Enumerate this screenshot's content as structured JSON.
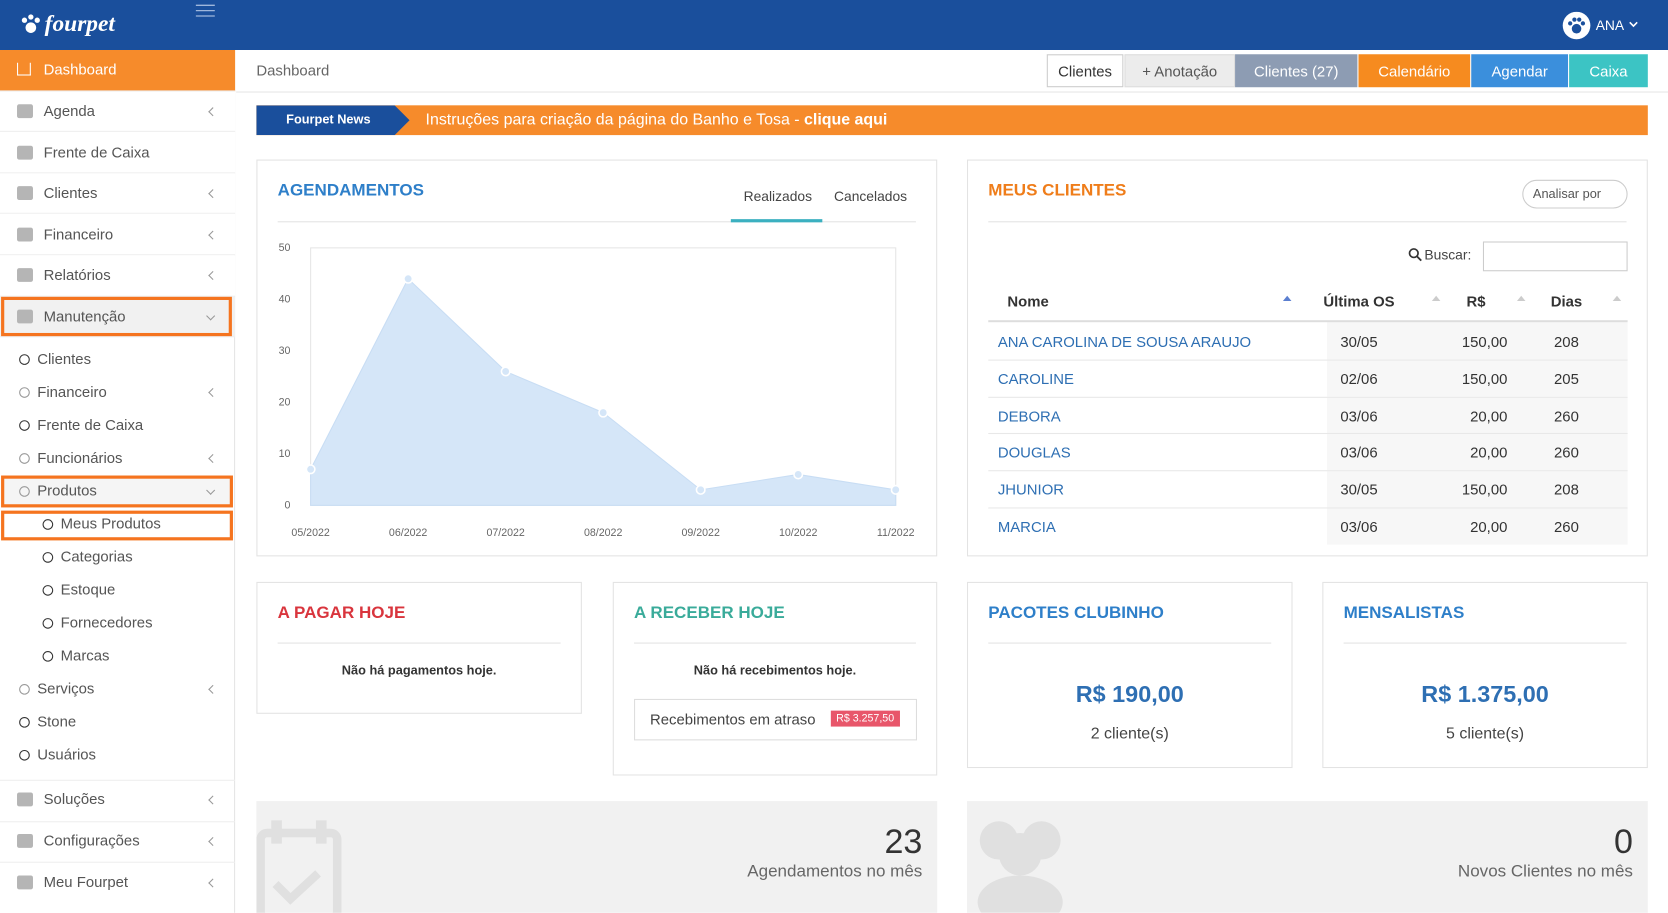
{
  "header": {
    "brand": "fourpet",
    "user": "ANA"
  },
  "sidebar": {
    "top": [
      "Dashboard",
      "Agenda",
      "Frente de Caixa",
      "Clientes",
      "Financeiro",
      "Relatórios",
      "Manutenção"
    ],
    "submenu": [
      "Clientes",
      "Financeiro",
      "Frente de Caixa",
      "Funcionários",
      "Produtos",
      "Meus Produtos",
      "Categorias",
      "Estoque",
      "Fornecedores",
      "Marcas",
      "Serviços",
      "Stone",
      "Usuários"
    ],
    "bottom": [
      "Soluções",
      "Configurações",
      "Meu Fourpet"
    ]
  },
  "breadcrumb": "Dashboard",
  "toolbar": [
    "Clientes",
    "+ Anotação",
    "Clientes (27)",
    "Calendário",
    "Agendar",
    "Caixa"
  ],
  "news": {
    "label": "Fourpet News",
    "text": "Instruções para criação da página do Banho e Tosa - ",
    "link": "clique aqui"
  },
  "agendamentos": {
    "title": "AGENDAMENTOS",
    "tabs": [
      "Realizados",
      "Cancelados"
    ],
    "chart_data": {
      "type": "area",
      "categories": [
        "05/2022",
        "06/2022",
        "07/2022",
        "08/2022",
        "09/2022",
        "10/2022",
        "11/2022"
      ],
      "values": [
        7,
        44,
        26,
        18,
        3,
        6,
        3
      ],
      "color": "#d5e6f8",
      "ylim": [
        0,
        50
      ],
      "yticks": [
        0,
        10,
        20,
        30,
        40,
        50
      ],
      "grid": false
    }
  },
  "clientes": {
    "title": "MEUS CLIENTES",
    "analyze": "Analisar por",
    "search": "Buscar:",
    "columns": [
      "Nome",
      "Última OS",
      "R$",
      "Dias"
    ],
    "rows": [
      [
        "ANA CAROLINA DE SOUSA ARAUJO",
        "30/05",
        "150,00",
        "208"
      ],
      [
        "CAROLINE",
        "02/06",
        "150,00",
        "205"
      ],
      [
        "DEBORA",
        "03/06",
        "20,00",
        "260"
      ],
      [
        "DOUGLAS",
        "03/06",
        "20,00",
        "260"
      ],
      [
        "JHUNIOR",
        "30/05",
        "150,00",
        "208"
      ],
      [
        "MARCIA",
        "03/06",
        "20,00",
        "260"
      ]
    ]
  },
  "pagar": {
    "title": "A PAGAR HOJE",
    "message": "Não há pagamentos hoje."
  },
  "receber": {
    "title": "A RECEBER HOJE",
    "message": "Não há recebimentos hoje.",
    "overdue": "Recebimentos em atraso",
    "overdue_amount": "R$ 3.257,50"
  },
  "clubinho": {
    "title": "PACOTES CLUBINHO",
    "amount": "R$ 190,00",
    "clients": "2 cliente(s)"
  },
  "mensalistas": {
    "title": "MENSALISTAS",
    "amount": "R$ 1.375,00",
    "clients": "5 cliente(s)"
  },
  "stats": [
    {
      "value": "23",
      "label": "Agendamentos no mês"
    },
    {
      "value": "0",
      "label": "Novos Clientes no mês"
    }
  ]
}
